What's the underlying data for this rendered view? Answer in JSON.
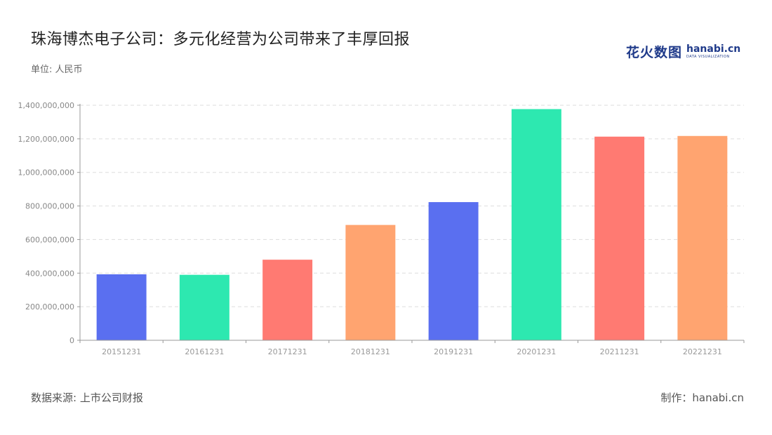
{
  "title": "珠海博杰电子公司：多元化经营为公司带来了丰厚回报",
  "unit_label": "单位: 人民币",
  "logo": {
    "cn": "花火数图",
    "en": "hanabi.cn",
    "sub": "DATA VISUALIZATION"
  },
  "footer": {
    "source": "数据来源: 上市公司财报",
    "credit": "制作：hanabi.cn"
  },
  "colors": {
    "palette": [
      "#5a6ff0",
      "#2de8b0",
      "#ff7a72",
      "#ffa470"
    ],
    "grid": "#dddddd",
    "axis": "#999999"
  },
  "chart_data": {
    "type": "bar",
    "title": "珠海博杰电子公司：多元化经营为公司带来了丰厚回报",
    "xlabel": "",
    "ylabel": "",
    "categories": [
      "20151231",
      "20161231",
      "20171231",
      "20181231",
      "20191231",
      "20201231",
      "20211231",
      "20221231"
    ],
    "values": [
      393000000,
      390000000,
      480000000,
      687000000,
      823000000,
      1377000000,
      1213000000,
      1217000000
    ],
    "ylim": [
      0,
      1400000000
    ],
    "yticks": [
      0,
      200000000,
      400000000,
      600000000,
      800000000,
      1000000000,
      1200000000,
      1400000000
    ],
    "ytick_labels": [
      "0",
      "200,000,000",
      "400,000,000",
      "600,000,000",
      "800,000,000",
      "1,000,000,000",
      "1,200,000,000",
      "1,400,000,000"
    ],
    "grid": true,
    "legend": "none"
  }
}
